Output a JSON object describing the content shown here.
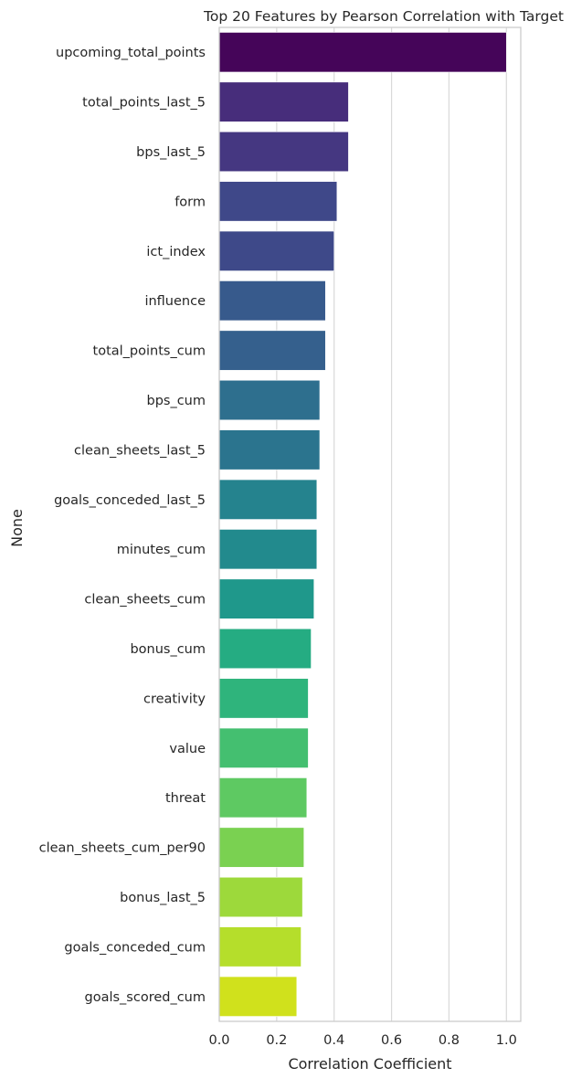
{
  "chart_data": {
    "type": "bar",
    "orientation": "horizontal",
    "title": "Top 20 Features by Pearson Correlation with Target",
    "xlabel": "Correlation Coefficient",
    "ylabel": "None",
    "xlim": [
      0.0,
      1.05
    ],
    "xticks": [
      "0.0",
      "0.2",
      "0.4",
      "0.6",
      "0.8",
      "1.0"
    ],
    "grid": "vertical",
    "palette": "viridis",
    "categories": [
      "upcoming_total_points",
      "total_points_last_5",
      "bps_last_5",
      "form",
      "ict_index",
      "influence",
      "total_points_cum",
      "bps_cum",
      "clean_sheets_last_5",
      "goals_conceded_last_5",
      "minutes_cum",
      "clean_sheets_cum",
      "bonus_cum",
      "creativity",
      "value",
      "threat",
      "clean_sheets_cum_per90",
      "bonus_last_5",
      "goals_conceded_cum",
      "goals_scored_cum"
    ],
    "values": [
      1.0,
      0.45,
      0.45,
      0.41,
      0.4,
      0.37,
      0.37,
      0.35,
      0.35,
      0.34,
      0.34,
      0.33,
      0.32,
      0.31,
      0.31,
      0.305,
      0.295,
      0.29,
      0.285,
      0.27
    ],
    "colors": [
      "#450559",
      "#472d7b",
      "#453781",
      "#3f4889",
      "#3e4989",
      "#375a8c",
      "#35608d",
      "#2e6f8e",
      "#2b748e",
      "#25838e",
      "#228a8d",
      "#1f988b",
      "#25ac82",
      "#2fb47c",
      "#44bf70",
      "#5ec962",
      "#7ad151",
      "#9dd93b",
      "#b5de2b",
      "#d0e11c"
    ]
  }
}
